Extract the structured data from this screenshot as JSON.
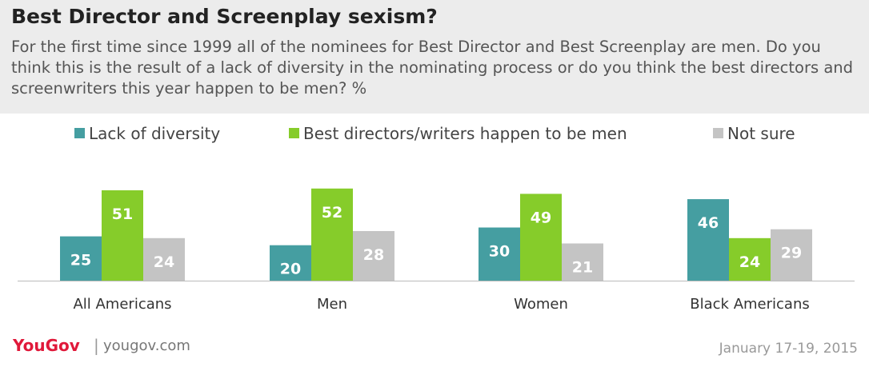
{
  "title": "Best Director and Screenplay sexism?",
  "subtitle": "For the first time since 1999 all of the nominees for Best Director and Best Screenplay are men. Do you think this is the result of a lack of diversity in the nominating process or do you think the best directors and screenwriters this year happen to be men? %",
  "footer": {
    "brand": "YouGov",
    "separator": "|",
    "site": "yougov.com",
    "date": "January 17-19, 2015"
  },
  "chart_data": {
    "type": "bar",
    "categories": [
      "All Americans",
      "Men",
      "Women",
      "Black Americans"
    ],
    "series": [
      {
        "name": "Lack of diversity",
        "color": "#459ea1",
        "values": [
          25,
          20,
          30,
          46
        ]
      },
      {
        "name": "Best directors/writers happen to be men",
        "color": "#86cc2a",
        "values": [
          51,
          52,
          49,
          24
        ]
      },
      {
        "name": "Not sure",
        "color": "#c4c4c4",
        "values": [
          24,
          28,
          21,
          29
        ]
      }
    ],
    "legend_position": "top",
    "grid": false,
    "ylim": [
      0,
      60
    ]
  }
}
